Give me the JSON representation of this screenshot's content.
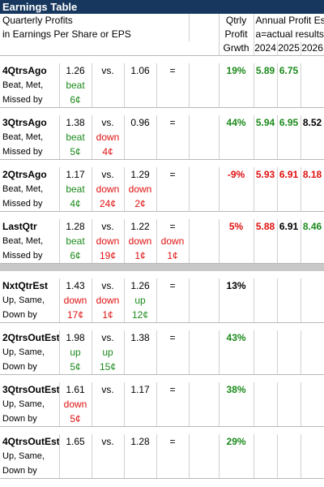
{
  "title": "Earnings Table",
  "header": {
    "line1": "Quarterly Profits",
    "line2": "in Earnings Per Share or EPS",
    "qtrly1": "Qtrly",
    "qtrly2": "Profit",
    "qtrly3": "Grwth",
    "annual1": "Annual Profit Est.",
    "annual2": "a=actual results",
    "years": [
      "2024",
      "2025",
      "2026"
    ]
  },
  "sections": [
    {
      "label": "4QtrsAgo",
      "actual": "1.26",
      "vs": "vs.",
      "prior": "1.06",
      "eq": "=",
      "growth": "19%",
      "growth_color": "#1b8a1b",
      "est": [
        "5.89",
        "6.75",
        ""
      ],
      "est_colors": [
        "#1b8a1b",
        "#1b8a1b",
        "#000000"
      ],
      "sub1": "Beat, Met,",
      "sub2": "Missed by",
      "w1": [
        "beat",
        "",
        "",
        ""
      ],
      "w1c": [
        "#1b8a1b",
        "",
        "",
        ""
      ],
      "w2": [
        "6¢",
        "",
        "",
        ""
      ],
      "w2c": [
        "#1b8a1b",
        "",
        "",
        ""
      ]
    },
    {
      "label": "3QtrsAgo",
      "actual": "1.38",
      "vs": "vs.",
      "prior": "0.96",
      "eq": "=",
      "growth": "44%",
      "growth_color": "#1b8a1b",
      "est": [
        "5.94",
        "6.95",
        "8.52"
      ],
      "est_colors": [
        "#1b8a1b",
        "#1b8a1b",
        "#000000"
      ],
      "sub1": "Beat, Met,",
      "sub2": "Missed by",
      "w1": [
        "beat",
        "down",
        "",
        ""
      ],
      "w1c": [
        "#1b8a1b",
        "#e01010",
        "",
        ""
      ],
      "w2": [
        "5¢",
        "4¢",
        "",
        ""
      ],
      "w2c": [
        "#1b8a1b",
        "#e01010",
        "",
        ""
      ]
    },
    {
      "label": "2QtrsAgo",
      "actual": "1.17",
      "vs": "vs.",
      "prior": "1.29",
      "eq": "=",
      "growth": "-9%",
      "growth_color": "#e01010",
      "est": [
        "5.93",
        "6.91",
        "8.18"
      ],
      "est_colors": [
        "#e01010",
        "#e01010",
        "#e01010"
      ],
      "sub1": "Beat, Met,",
      "sub2": "Missed by",
      "w1": [
        "beat",
        "down",
        "down",
        ""
      ],
      "w1c": [
        "#1b8a1b",
        "#e01010",
        "#e01010",
        ""
      ],
      "w2": [
        "4¢",
        "24¢",
        "2¢",
        ""
      ],
      "w2c": [
        "#1b8a1b",
        "#e01010",
        "#e01010",
        ""
      ]
    },
    {
      "label": "LastQtr",
      "actual": "1.28",
      "vs": "vs.",
      "prior": "1.22",
      "eq": "=",
      "growth": "5%",
      "growth_color": "#e01010",
      "est": [
        "5.88",
        "6.91",
        "8.46"
      ],
      "est_colors": [
        "#e01010",
        "#000000",
        "#1b8a1b"
      ],
      "sub1": "Beat, Met,",
      "sub2": "Missed by",
      "w1": [
        "beat",
        "down",
        "down",
        "down"
      ],
      "w1c": [
        "#1b8a1b",
        "#e01010",
        "#e01010",
        "#e01010"
      ],
      "w2": [
        "6¢",
        "19¢",
        "1¢",
        "1¢"
      ],
      "w2c": [
        "#1b8a1b",
        "#e01010",
        "#e01010",
        "#e01010"
      ]
    },
    {
      "label": "NxtQtrEst",
      "actual": "1.43",
      "vs": "vs.",
      "prior": "1.26",
      "eq": "=",
      "growth": "13%",
      "growth_color": "#000000",
      "est": [
        "",
        "",
        ""
      ],
      "est_colors": [
        "#000000",
        "#000000",
        "#000000"
      ],
      "sub1": "Up, Same,",
      "sub2": "Down by",
      "w1": [
        "down",
        "down",
        "up",
        ""
      ],
      "w1c": [
        "#e01010",
        "#e01010",
        "#1b8a1b",
        ""
      ],
      "w2": [
        "17¢",
        "1¢",
        "12¢",
        ""
      ],
      "w2c": [
        "#e01010",
        "#e01010",
        "#1b8a1b",
        ""
      ]
    },
    {
      "label": "2QtrsOutEst",
      "actual": "1.98",
      "vs": "vs.",
      "prior": "1.38",
      "eq": "=",
      "growth": "43%",
      "growth_color": "#1b8a1b",
      "est": [
        "",
        "",
        ""
      ],
      "est_colors": [
        "#000000",
        "#000000",
        "#000000"
      ],
      "sub1": "Up, Same,",
      "sub2": "Down by",
      "w1": [
        "up",
        "up",
        "",
        ""
      ],
      "w1c": [
        "#1b8a1b",
        "#1b8a1b",
        "",
        ""
      ],
      "w2": [
        "5¢",
        "15¢",
        "",
        ""
      ],
      "w2c": [
        "#1b8a1b",
        "#1b8a1b",
        "",
        ""
      ]
    },
    {
      "label": "3QtrsOutEst",
      "actual": "1.61",
      "vs": "vs.",
      "prior": "1.17",
      "eq": "=",
      "growth": "38%",
      "growth_color": "#1b8a1b",
      "est": [
        "",
        "",
        ""
      ],
      "est_colors": [
        "#000000",
        "#000000",
        "#000000"
      ],
      "sub1": "Up, Same,",
      "sub2": "Down by",
      "w1": [
        "down",
        "",
        "",
        ""
      ],
      "w1c": [
        "#e01010",
        "",
        "",
        ""
      ],
      "w2": [
        "5¢",
        "",
        "",
        ""
      ],
      "w2c": [
        "#e01010",
        "",
        "",
        ""
      ]
    },
    {
      "label": "4QtrsOutEst",
      "actual": "1.65",
      "vs": "vs.",
      "prior": "1.28",
      "eq": "=",
      "growth": "29%",
      "growth_color": "#1b8a1b",
      "est": [
        "",
        "",
        ""
      ],
      "est_colors": [
        "#000000",
        "#000000",
        "#000000"
      ],
      "sub1": "Up, Same,",
      "sub2": "Down by",
      "w1": [
        "",
        "",
        "",
        ""
      ],
      "w1c": [
        "",
        "",
        "",
        ""
      ],
      "w2": [
        "",
        "",
        "",
        ""
      ],
      "w2c": [
        "",
        "",
        "",
        ""
      ]
    }
  ]
}
